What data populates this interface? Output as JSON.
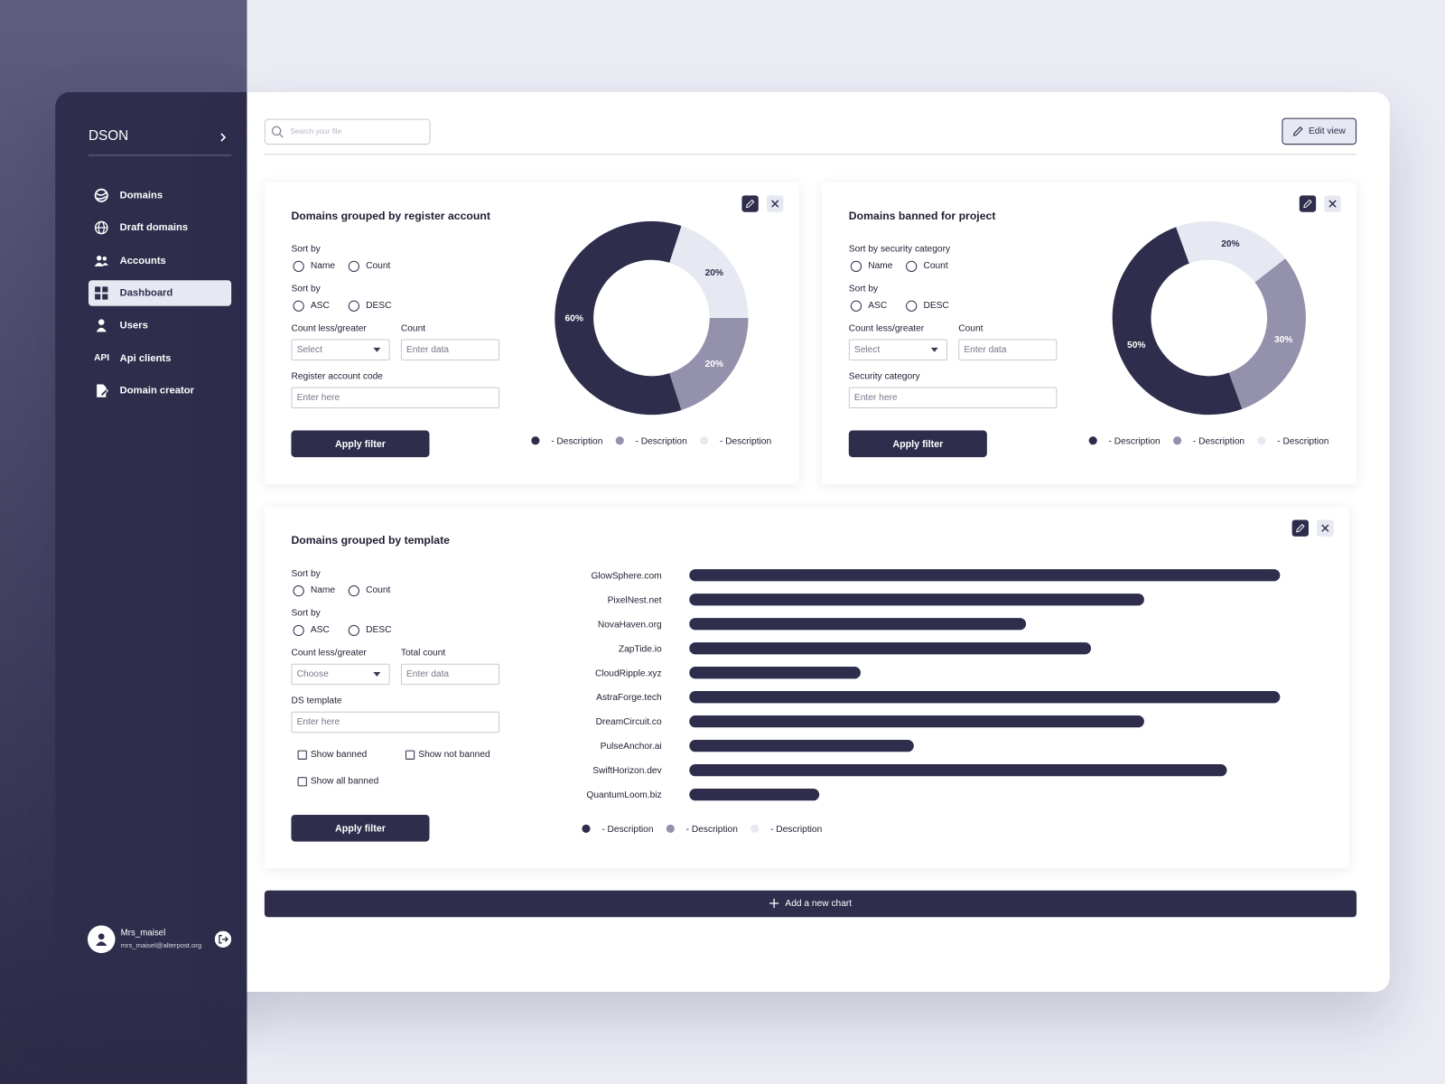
{
  "sidebar": {
    "brand": "DSON",
    "nav": [
      {
        "label": "Domains"
      },
      {
        "label": "Draft domains"
      },
      {
        "label": "Accounts"
      },
      {
        "label": "Dashboard"
      },
      {
        "label": "Users"
      },
      {
        "label": "Api clients",
        "icon_text": "API"
      },
      {
        "label": "Domain creator"
      }
    ],
    "user": {
      "name": "Mrs_maisel",
      "email": "mrs_maisel@alterpost.org"
    }
  },
  "toolbar": {
    "search_placeholder": "Search your file",
    "edit_button": "Edit view"
  },
  "add_button": "Add a new chart",
  "panels": [
    {
      "form": {
        "sort": {
          "label": "Sort by",
          "options": [
            "Name",
            "Count"
          ]
        },
        "order": {
          "label": "Sort by",
          "options": [
            "ASC",
            "DESC"
          ]
        },
        "compare": {
          "label": "Count less/greater",
          "placeholder": "Select"
        },
        "count": {
          "label": "Count",
          "placeholder": "Enter data"
        },
        "field": {
          "label": "Register account code",
          "placeholder": "Enter here"
        },
        "button": "Apply filter"
      }
    },
    {
      "form": {
        "sort": {
          "label": "Sort by security category",
          "options": [
            "Name",
            "Count"
          ]
        },
        "order": {
          "label": "Sort by",
          "options": [
            "ASC",
            "DESC"
          ]
        },
        "compare": {
          "label": "Count less/greater",
          "placeholder": "Select"
        },
        "count": {
          "label": "Count",
          "placeholder": "Enter data"
        },
        "field": {
          "label": "Security category",
          "placeholder": "Enter here"
        },
        "button": "Apply filter"
      }
    },
    {
      "form": {
        "sort": {
          "label": "Sort by",
          "options": [
            "Name",
            "Count"
          ]
        },
        "order": {
          "label": "Sort by",
          "options": [
            "ASC",
            "DESC"
          ]
        },
        "compare": {
          "label": "Count less/greater",
          "placeholder": "Choose"
        },
        "count": {
          "label": "Total count",
          "placeholder": "Enter data"
        },
        "field": {
          "label": "DS template",
          "placeholder": "Enter here"
        },
        "checkboxes": [
          "Show banned",
          "Show not banned",
          "Show all banned"
        ],
        "button": "Apply filter"
      }
    }
  ],
  "chart_data": [
    {
      "type": "donut",
      "title": "Domains grouped by register account",
      "categories": [
        "- Description",
        "- Description",
        "- Description"
      ],
      "values": [
        60,
        20,
        20
      ],
      "value_labels": [
        "60%",
        "20%",
        "20%"
      ],
      "colors": [
        "#2e2d4c",
        "#9491ad",
        "#e6e8f2"
      ]
    },
    {
      "type": "donut",
      "title": "Domains banned for project",
      "categories": [
        "- Description",
        "- Description",
        "- Description"
      ],
      "values": [
        50,
        30,
        20
      ],
      "value_labels": [
        "50%",
        "30%",
        "20%"
      ],
      "colors": [
        "#2e2d4c",
        "#9491ad",
        "#e6e8f2"
      ]
    },
    {
      "type": "hbar",
      "title": "Domains grouped by template",
      "categories": [
        "GlowSphere.com",
        "PixelNest.net",
        "NovaHaven.org",
        "ZapTide.io",
        "CloudRipple.xyz",
        "AstraForge.tech",
        "DreamCircuit.co",
        "PulseAnchor.ai",
        "SwiftHorizon.dev",
        "QuantumLoom.biz"
      ],
      "values": [
        100,
        77,
        57,
        68,
        29,
        100,
        77,
        38,
        91,
        22
      ],
      "color": "#2e2d4c",
      "legend": [
        {
          "name": "- Description",
          "color": "#2e2d4c"
        },
        {
          "name": "- Description",
          "color": "#9491ad"
        },
        {
          "name": "- Description",
          "color": "#e6e8f2"
        }
      ]
    }
  ]
}
